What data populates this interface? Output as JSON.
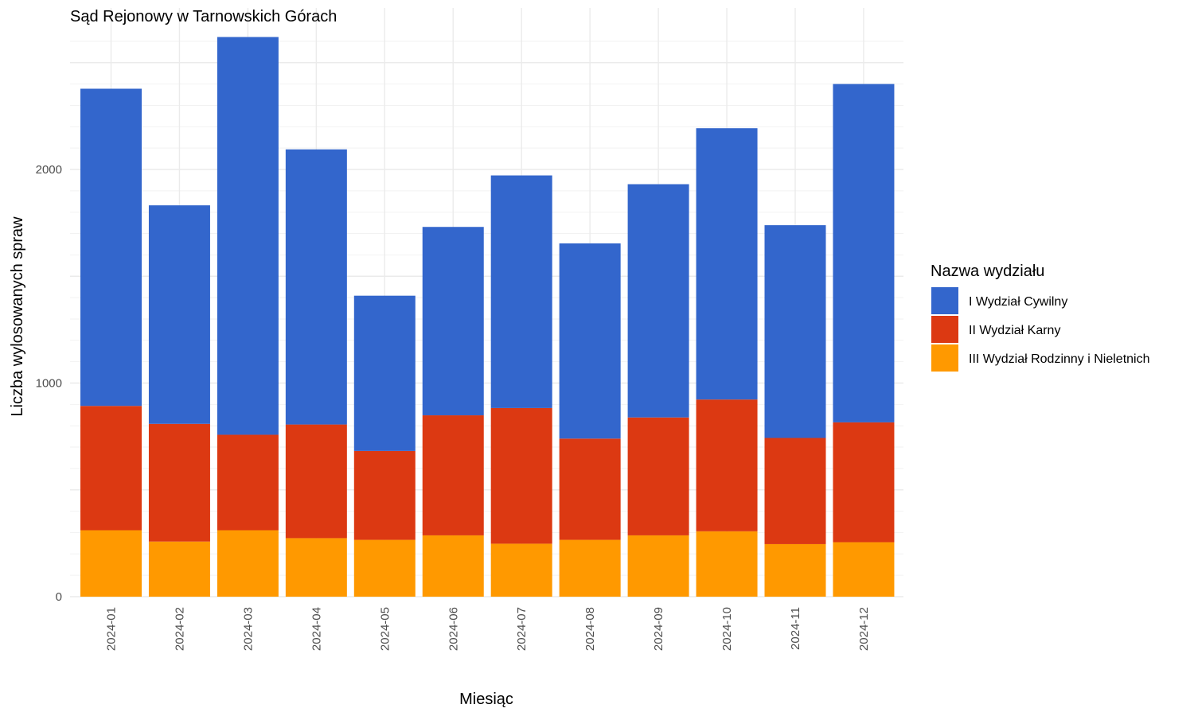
{
  "chart_data": {
    "type": "bar",
    "stacked": true,
    "title": "Sąd Rejonowy w Tarnowskich Górach",
    "xlabel": "Miesiąc",
    "ylabel": "Liczba wylosowanych spraw",
    "ylim": [
      0,
      2620
    ],
    "yticks": [
      0,
      1000,
      2000
    ],
    "grid": true,
    "legend_title": "Nazwa wydziału",
    "legend_position": "right",
    "categories": [
      "2024-01",
      "2024-02",
      "2024-03",
      "2024-04",
      "2024-05",
      "2024-06",
      "2024-07",
      "2024-08",
      "2024-09",
      "2024-10",
      "2024-11",
      "2024-12"
    ],
    "series": [
      {
        "name": "III Wydział Rodzinny i Nieletnich",
        "color": "#FF9900",
        "values": [
          311,
          258,
          311,
          274,
          266,
          287,
          248,
          266,
          287,
          306,
          246,
          255
        ]
      },
      {
        "name": "II Wydział Karny",
        "color": "#DC3912",
        "values": [
          582,
          551,
          447,
          532,
          416,
          562,
          635,
          474,
          552,
          617,
          497,
          561
        ]
      },
      {
        "name": "I Wydział Cywilny",
        "color": "#3366CC",
        "values": [
          1485,
          1023,
          1862,
          1288,
          727,
          882,
          1089,
          914,
          1092,
          1270,
          996,
          1584
        ]
      }
    ],
    "legend_order": [
      "I Wydział Cywilny",
      "II Wydział Karny",
      "III Wydział Rodzinny i Nieletnich"
    ]
  }
}
